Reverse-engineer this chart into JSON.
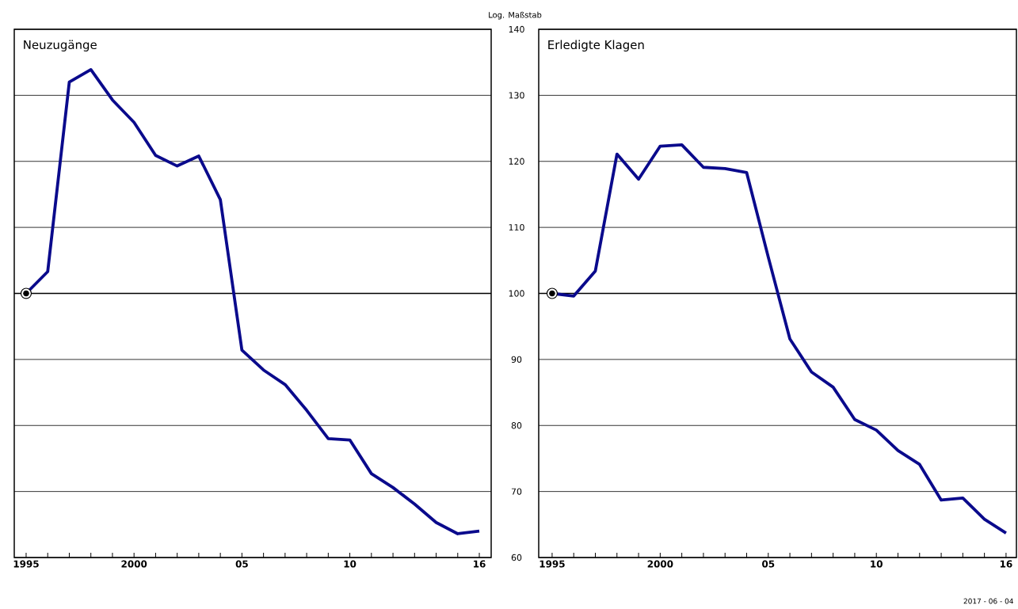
{
  "chart_data": [
    {
      "type": "line",
      "title": "Neuzugänge",
      "x": [
        1995,
        1996,
        1997,
        1998,
        1999,
        2000,
        2001,
        2002,
        2003,
        2004,
        2005,
        2006,
        2007,
        2008,
        2009,
        2010,
        2011,
        2012,
        2013,
        2014,
        2015,
        2016
      ],
      "series": [
        {
          "color": "#0a0a8c",
          "values": [
            100,
            103.3,
            132,
            133.9,
            129.3,
            125.9,
            120.9,
            119.3,
            120.8,
            114.2,
            91.4,
            88.4,
            86.2,
            82.3,
            78.0,
            77.8,
            72.7,
            70.6,
            68.1,
            65.3,
            63.6,
            64.0
          ]
        },
        {
          "type": "scatter",
          "color": "#000000",
          "marker": "circle",
          "x": [
            1995
          ],
          "values": [
            100
          ]
        }
      ],
      "xlim": [
        1994.45,
        2016.55
      ],
      "ylim": [
        60,
        140
      ],
      "xticks": [
        {
          "value": 1995,
          "label": "1995"
        },
        {
          "value": 1996,
          "label": null
        },
        {
          "value": 1997,
          "label": null
        },
        {
          "value": 1998,
          "label": null
        },
        {
          "value": 1999,
          "label": null
        },
        {
          "value": 2000,
          "label": "2000"
        },
        {
          "value": 2001,
          "label": null
        },
        {
          "value": 2002,
          "label": null
        },
        {
          "value": 2003,
          "label": null
        },
        {
          "value": 2004,
          "label": null
        },
        {
          "value": 2005,
          "label": "05"
        },
        {
          "value": 2006,
          "label": null
        },
        {
          "value": 2007,
          "label": null
        },
        {
          "value": 2008,
          "label": null
        },
        {
          "value": 2009,
          "label": null
        },
        {
          "value": 2010,
          "label": "10"
        },
        {
          "value": 2011,
          "label": null
        },
        {
          "value": 2012,
          "label": null
        },
        {
          "value": 2013,
          "label": null
        },
        {
          "value": 2014,
          "label": null
        },
        {
          "value": 2015,
          "label": null
        },
        {
          "value": 2016,
          "label": "16"
        }
      ],
      "yticks": [
        60,
        70,
        80,
        90,
        100,
        110,
        120,
        130,
        140
      ],
      "grid": "y",
      "tick_labels": "x",
      "line_style": "solid",
      "ref_lines": [
        {
          "axis": "y",
          "value": 100,
          "color": "#000000"
        }
      ]
    },
    {
      "type": "line",
      "title": "Erledigte Klagen",
      "ylabel": "Log. Maßstab",
      "x": [
        1995,
        1996,
        1997,
        1998,
        1999,
        2000,
        2001,
        2002,
        2003,
        2004,
        2005,
        2006,
        2007,
        2008,
        2009,
        2010,
        2011,
        2012,
        2013,
        2014,
        2015,
        2016
      ],
      "series": [
        {
          "color": "#0a0a8c",
          "values": [
            100,
            99.6,
            103.4,
            121.1,
            117.3,
            122.3,
            122.5,
            119.1,
            118.9,
            118.3,
            105.5,
            93.1,
            88.1,
            85.8,
            80.9,
            79.3,
            76.2,
            74.1,
            68.7,
            69.0,
            65.8,
            63.7
          ]
        },
        {
          "type": "scatter",
          "color": "#000000",
          "marker": "circle",
          "x": [
            1995
          ],
          "values": [
            100
          ]
        }
      ],
      "xlim": [
        1994.38,
        2016.48
      ],
      "ylim": [
        60,
        140
      ],
      "xticks": [
        {
          "value": 1995,
          "label": "1995"
        },
        {
          "value": 1996,
          "label": null
        },
        {
          "value": 1997,
          "label": null
        },
        {
          "value": 1998,
          "label": null
        },
        {
          "value": 1999,
          "label": null
        },
        {
          "value": 2000,
          "label": "2000"
        },
        {
          "value": 2001,
          "label": null
        },
        {
          "value": 2002,
          "label": null
        },
        {
          "value": 2003,
          "label": null
        },
        {
          "value": 2004,
          "label": null
        },
        {
          "value": 2005,
          "label": "05"
        },
        {
          "value": 2006,
          "label": null
        },
        {
          "value": 2007,
          "label": null
        },
        {
          "value": 2008,
          "label": null
        },
        {
          "value": 2009,
          "label": null
        },
        {
          "value": 2010,
          "label": "10"
        },
        {
          "value": 2011,
          "label": null
        },
        {
          "value": 2012,
          "label": null
        },
        {
          "value": 2013,
          "label": null
        },
        {
          "value": 2014,
          "label": null
        },
        {
          "value": 2015,
          "label": null
        },
        {
          "value": 2016,
          "label": "16"
        }
      ],
      "yticks": [
        60,
        70,
        80,
        90,
        100,
        110,
        120,
        130,
        140
      ],
      "grid": "y",
      "line_style": "solid",
      "ref_lines": [
        {
          "axis": "y",
          "value": 100,
          "color": "#000000"
        }
      ],
      "annotations": [
        "2017 - 06 - 04"
      ]
    }
  ]
}
